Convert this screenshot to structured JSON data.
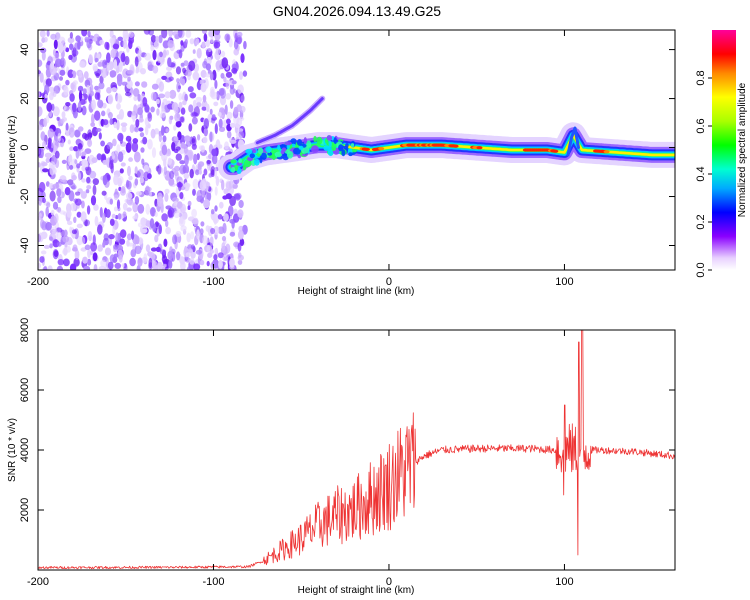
{
  "title": "GN04.2026.094.13.49.G25",
  "chart_data": [
    {
      "type": "heatmap",
      "name": "spectrogram",
      "xlabel": "Height of straight line (km)",
      "ylabel": "Frequency (Hz)",
      "xlim": [
        -200,
        163
      ],
      "ylim": [
        -50,
        48
      ],
      "xticks": [
        -200,
        -100,
        0,
        100
      ],
      "yticks": [
        -40,
        -20,
        0,
        20,
        40
      ],
      "noise_region_x": [
        -200,
        -82
      ],
      "ridge": [
        {
          "x": -88,
          "y": -8
        },
        {
          "x": -80,
          "y": -4
        },
        {
          "x": -70,
          "y": -2
        },
        {
          "x": -60,
          "y": -1
        },
        {
          "x": -50,
          "y": 0
        },
        {
          "x": -40,
          "y": 1
        },
        {
          "x": -30,
          "y": 1
        },
        {
          "x": -20,
          "y": 0
        },
        {
          "x": -10,
          "y": -1
        },
        {
          "x": 0,
          "y": 0
        },
        {
          "x": 10,
          "y": 1
        },
        {
          "x": 20,
          "y": 1
        },
        {
          "x": 30,
          "y": 1
        },
        {
          "x": 50,
          "y": 0
        },
        {
          "x": 70,
          "y": -1
        },
        {
          "x": 90,
          "y": -1
        },
        {
          "x": 100,
          "y": -2
        },
        {
          "x": 105,
          "y": 5
        },
        {
          "x": 110,
          "y": -1
        },
        {
          "x": 130,
          "y": -2
        },
        {
          "x": 150,
          "y": -3
        },
        {
          "x": 163,
          "y": -3
        }
      ],
      "side_branch": [
        {
          "x": -75,
          "y": 2
        },
        {
          "x": -65,
          "y": 5
        },
        {
          "x": -55,
          "y": 9
        },
        {
          "x": -45,
          "y": 15
        },
        {
          "x": -38,
          "y": 20
        }
      ],
      "colorbar": {
        "label": "Normalized spectral amplitude",
        "ticks": [
          "0.0",
          "0.2",
          "0.4",
          "0.6",
          "0.8"
        ],
        "tick_values": [
          0,
          0.2,
          0.4,
          0.6,
          0.8
        ],
        "range": [
          0,
          1
        ]
      }
    },
    {
      "type": "line",
      "name": "snr",
      "xlabel": "Height of straight line (km)",
      "ylabel": "SNR (10 * v/v)",
      "xlim": [
        -200,
        163
      ],
      "ylim": [
        0,
        8000
      ],
      "xticks": [
        -200,
        -100,
        0,
        100
      ],
      "yticks": [
        2000,
        4000,
        6000,
        8000
      ],
      "color": "#ee3333",
      "envelope": [
        {
          "x": -200,
          "y": 80
        },
        {
          "x": -120,
          "y": 90
        },
        {
          "x": -80,
          "y": 110
        },
        {
          "x": -72,
          "y": 300
        },
        {
          "x": -60,
          "y": 700
        },
        {
          "x": -50,
          "y": 1050
        },
        {
          "x": -40,
          "y": 1500
        },
        {
          "x": -30,
          "y": 1800
        },
        {
          "x": -20,
          "y": 2000
        },
        {
          "x": -10,
          "y": 2400
        },
        {
          "x": 0,
          "y": 2850
        },
        {
          "x": 10,
          "y": 3400
        },
        {
          "x": 20,
          "y": 3800
        },
        {
          "x": 30,
          "y": 4000
        },
        {
          "x": 50,
          "y": 4050
        },
        {
          "x": 80,
          "y": 4050
        },
        {
          "x": 95,
          "y": 4000
        },
        {
          "x": 108,
          "y": 4000
        },
        {
          "x": 120,
          "y": 4000
        },
        {
          "x": 140,
          "y": 3950
        },
        {
          "x": 163,
          "y": 3800
        }
      ],
      "bursts": [
        {
          "x": 100,
          "y_max": 5500,
          "y_min": 2500
        },
        {
          "x": 108,
          "y_max": 7600,
          "y_min": 500
        },
        {
          "x": 110,
          "y_max": 8000,
          "y_min": 400
        }
      ]
    }
  ]
}
